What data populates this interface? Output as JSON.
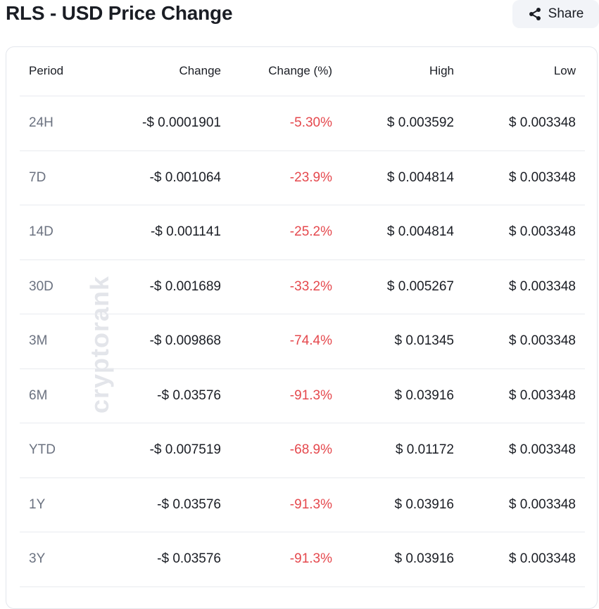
{
  "header": {
    "title": "RLS - USD Price Change",
    "share": "Share"
  },
  "watermark": "cryptorank",
  "table": {
    "columns": [
      "Period",
      "Change",
      "Change (%)",
      "High",
      "Low"
    ],
    "rows": [
      [
        "24H",
        "-$ 0.0001901",
        "-5.30%",
        "$ 0.003592",
        "$ 0.003348"
      ],
      [
        "7D",
        "-$ 0.001064",
        "-23.9%",
        "$ 0.004814",
        "$ 0.003348"
      ],
      [
        "14D",
        "-$ 0.001141",
        "-25.2%",
        "$ 0.004814",
        "$ 0.003348"
      ],
      [
        "30D",
        "-$ 0.001689",
        "-33.2%",
        "$ 0.005267",
        "$ 0.003348"
      ],
      [
        "3M",
        "-$ 0.009868",
        "-74.4%",
        "$ 0.01345",
        "$ 0.003348"
      ],
      [
        "6M",
        "-$ 0.03576",
        "-91.3%",
        "$ 0.03916",
        "$ 0.003348"
      ],
      [
        "YTD",
        "-$ 0.007519",
        "-68.9%",
        "$ 0.01172",
        "$ 0.003348"
      ],
      [
        "1Y",
        "-$ 0.03576",
        "-91.3%",
        "$ 0.03916",
        "$ 0.003348"
      ],
      [
        "3Y",
        "-$ 0.03576",
        "-91.3%",
        "$ 0.03916",
        "$ 0.003348"
      ]
    ]
  }
}
